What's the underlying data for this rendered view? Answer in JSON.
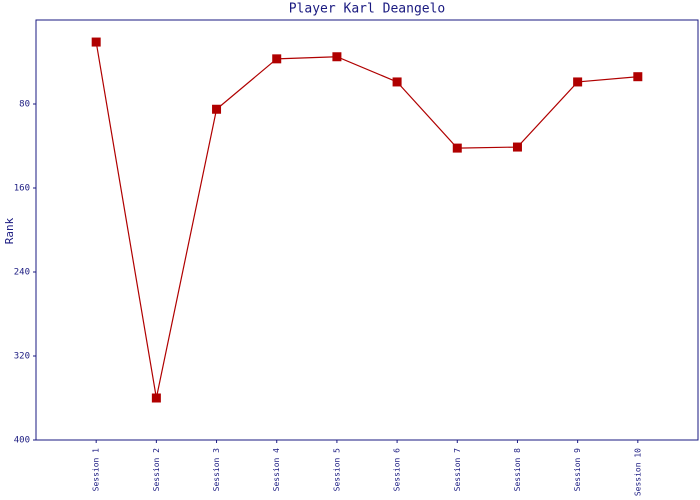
{
  "chart_data": {
    "type": "line",
    "title": "Player Karl Deangelo",
    "y_label": "Rank",
    "categories": [
      "Session 1",
      "Session 2",
      "Session 3",
      "Session 4",
      "Session 5",
      "Session 6",
      "Session 7",
      "Session 8",
      "Session 9",
      "Session 10"
    ],
    "series": [
      {
        "color": "#b00000",
        "values": [
          21,
          360,
          85,
          37,
          35,
          59,
          122,
          121,
          59,
          54
        ]
      }
    ],
    "ylim": [
      0,
      400
    ],
    "y_inverted": true,
    "yticks": [
      80,
      160,
      240,
      320,
      400
    ],
    "grid": false
  }
}
